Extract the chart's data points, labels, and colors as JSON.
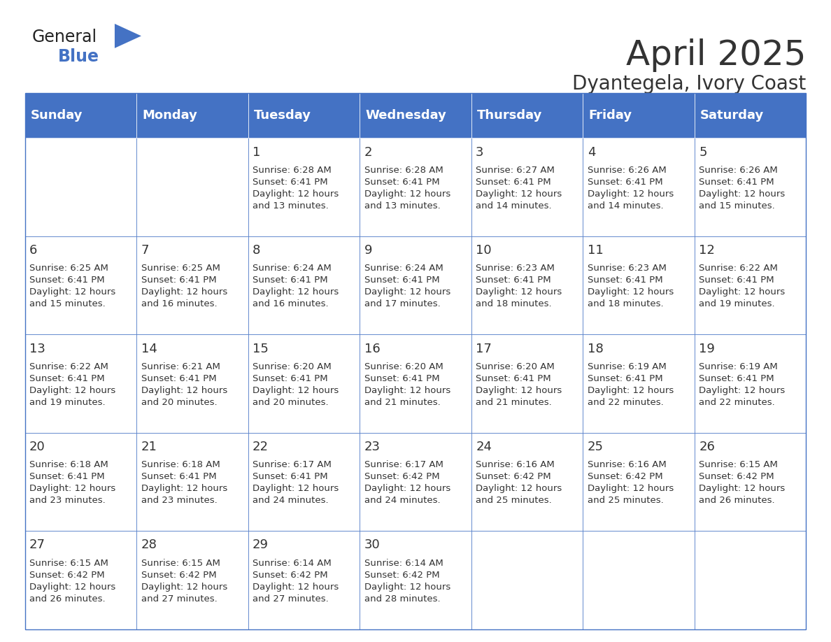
{
  "title": "April 2025",
  "subtitle": "Dyantegela, Ivory Coast",
  "header_bg_color": "#4472C4",
  "header_text_color": "#FFFFFF",
  "cell_bg_color": "#FFFFFF",
  "alt_cell_bg_color": "#F2F2F2",
  "border_color": "#4472C4",
  "text_color": "#333333",
  "day_headers": [
    "Sunday",
    "Monday",
    "Tuesday",
    "Wednesday",
    "Thursday",
    "Friday",
    "Saturday"
  ],
  "weeks": [
    [
      {
        "day": "",
        "info": ""
      },
      {
        "day": "",
        "info": ""
      },
      {
        "day": "1",
        "info": "Sunrise: 6:28 AM\nSunset: 6:41 PM\nDaylight: 12 hours\nand 13 minutes."
      },
      {
        "day": "2",
        "info": "Sunrise: 6:28 AM\nSunset: 6:41 PM\nDaylight: 12 hours\nand 13 minutes."
      },
      {
        "day": "3",
        "info": "Sunrise: 6:27 AM\nSunset: 6:41 PM\nDaylight: 12 hours\nand 14 minutes."
      },
      {
        "day": "4",
        "info": "Sunrise: 6:26 AM\nSunset: 6:41 PM\nDaylight: 12 hours\nand 14 minutes."
      },
      {
        "day": "5",
        "info": "Sunrise: 6:26 AM\nSunset: 6:41 PM\nDaylight: 12 hours\nand 15 minutes."
      }
    ],
    [
      {
        "day": "6",
        "info": "Sunrise: 6:25 AM\nSunset: 6:41 PM\nDaylight: 12 hours\nand 15 minutes."
      },
      {
        "day": "7",
        "info": "Sunrise: 6:25 AM\nSunset: 6:41 PM\nDaylight: 12 hours\nand 16 minutes."
      },
      {
        "day": "8",
        "info": "Sunrise: 6:24 AM\nSunset: 6:41 PM\nDaylight: 12 hours\nand 16 minutes."
      },
      {
        "day": "9",
        "info": "Sunrise: 6:24 AM\nSunset: 6:41 PM\nDaylight: 12 hours\nand 17 minutes."
      },
      {
        "day": "10",
        "info": "Sunrise: 6:23 AM\nSunset: 6:41 PM\nDaylight: 12 hours\nand 18 minutes."
      },
      {
        "day": "11",
        "info": "Sunrise: 6:23 AM\nSunset: 6:41 PM\nDaylight: 12 hours\nand 18 minutes."
      },
      {
        "day": "12",
        "info": "Sunrise: 6:22 AM\nSunset: 6:41 PM\nDaylight: 12 hours\nand 19 minutes."
      }
    ],
    [
      {
        "day": "13",
        "info": "Sunrise: 6:22 AM\nSunset: 6:41 PM\nDaylight: 12 hours\nand 19 minutes."
      },
      {
        "day": "14",
        "info": "Sunrise: 6:21 AM\nSunset: 6:41 PM\nDaylight: 12 hours\nand 20 minutes."
      },
      {
        "day": "15",
        "info": "Sunrise: 6:20 AM\nSunset: 6:41 PM\nDaylight: 12 hours\nand 20 minutes."
      },
      {
        "day": "16",
        "info": "Sunrise: 6:20 AM\nSunset: 6:41 PM\nDaylight: 12 hours\nand 21 minutes."
      },
      {
        "day": "17",
        "info": "Sunrise: 6:20 AM\nSunset: 6:41 PM\nDaylight: 12 hours\nand 21 minutes."
      },
      {
        "day": "18",
        "info": "Sunrise: 6:19 AM\nSunset: 6:41 PM\nDaylight: 12 hours\nand 22 minutes."
      },
      {
        "day": "19",
        "info": "Sunrise: 6:19 AM\nSunset: 6:41 PM\nDaylight: 12 hours\nand 22 minutes."
      }
    ],
    [
      {
        "day": "20",
        "info": "Sunrise: 6:18 AM\nSunset: 6:41 PM\nDaylight: 12 hours\nand 23 minutes."
      },
      {
        "day": "21",
        "info": "Sunrise: 6:18 AM\nSunset: 6:41 PM\nDaylight: 12 hours\nand 23 minutes."
      },
      {
        "day": "22",
        "info": "Sunrise: 6:17 AM\nSunset: 6:41 PM\nDaylight: 12 hours\nand 24 minutes."
      },
      {
        "day": "23",
        "info": "Sunrise: 6:17 AM\nSunset: 6:42 PM\nDaylight: 12 hours\nand 24 minutes."
      },
      {
        "day": "24",
        "info": "Sunrise: 6:16 AM\nSunset: 6:42 PM\nDaylight: 12 hours\nand 25 minutes."
      },
      {
        "day": "25",
        "info": "Sunrise: 6:16 AM\nSunset: 6:42 PM\nDaylight: 12 hours\nand 25 minutes."
      },
      {
        "day": "26",
        "info": "Sunrise: 6:15 AM\nSunset: 6:42 PM\nDaylight: 12 hours\nand 26 minutes."
      }
    ],
    [
      {
        "day": "27",
        "info": "Sunrise: 6:15 AM\nSunset: 6:42 PM\nDaylight: 12 hours\nand 26 minutes."
      },
      {
        "day": "28",
        "info": "Sunrise: 6:15 AM\nSunset: 6:42 PM\nDaylight: 12 hours\nand 27 minutes."
      },
      {
        "day": "29",
        "info": "Sunrise: 6:14 AM\nSunset: 6:42 PM\nDaylight: 12 hours\nand 27 minutes."
      },
      {
        "day": "30",
        "info": "Sunrise: 6:14 AM\nSunset: 6:42 PM\nDaylight: 12 hours\nand 28 minutes."
      },
      {
        "day": "",
        "info": ""
      },
      {
        "day": "",
        "info": ""
      },
      {
        "day": "",
        "info": ""
      }
    ]
  ],
  "logo_text_general": "General",
  "logo_text_blue": "Blue",
  "logo_color_general": "#222222",
  "logo_color_blue": "#4472C4",
  "logo_triangle_color": "#4472C4",
  "title_fontsize": 36,
  "subtitle_fontsize": 20,
  "header_fontsize": 13,
  "day_num_fontsize": 13,
  "info_fontsize": 9.5,
  "fig_bg_color": "#FFFFFF"
}
